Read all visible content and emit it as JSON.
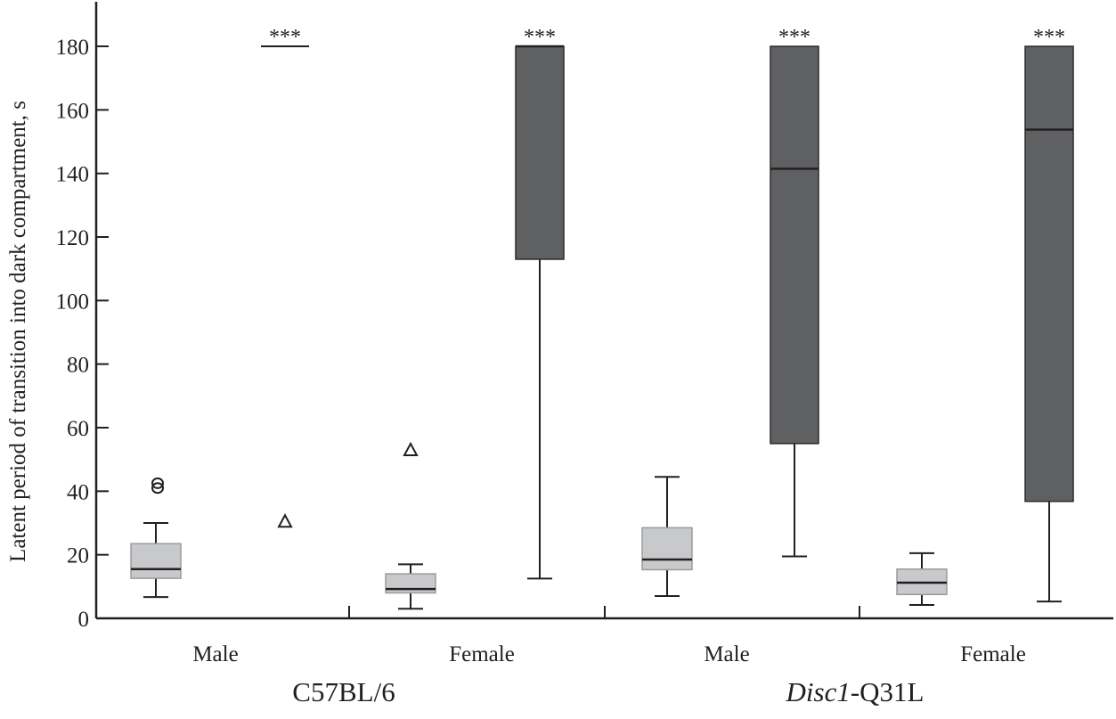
{
  "chart_data": {
    "type": "box",
    "title": "",
    "ylabel": "Latent period of transition into dark compartment, s",
    "ylim": [
      0,
      180
    ],
    "yticks": [
      0,
      20,
      40,
      60,
      80,
      100,
      120,
      140,
      160,
      180
    ],
    "grid": false,
    "sex_labels": [
      "Male",
      "Female",
      "Male",
      "Female"
    ],
    "strain_labels": [
      {
        "prefix": "C57BL/6",
        "italic": "",
        "suffix": ""
      },
      {
        "prefix": "",
        "italic": "Disc1",
        "suffix": "-Q31L"
      }
    ],
    "colors": {
      "light": "#c8c9cb",
      "dark": "#5f6062",
      "stroke": "#231f20"
    },
    "boxes": [
      {
        "strain": "C57BL/6",
        "sex": "Male",
        "shade": "light",
        "min": 6.7,
        "q1": 12.6,
        "median": 15.5,
        "q3": 23.5,
        "max": 30,
        "outliers": [
          41,
          42.5
        ],
        "outlier_marker": "circle",
        "annotation": ""
      },
      {
        "strain": "C57BL/6",
        "sex": "Male",
        "shade": "dark",
        "min": 180,
        "q1": 180,
        "median": 180,
        "q3": 180,
        "max": 180,
        "outliers": [
          30.5
        ],
        "outlier_marker": "triangle",
        "annotation": "***"
      },
      {
        "strain": "C57BL/6",
        "sex": "Female",
        "shade": "light",
        "min": 3,
        "q1": 8,
        "median": 9.2,
        "q3": 14,
        "max": 17,
        "outliers": [
          53
        ],
        "outlier_marker": "triangle",
        "annotation": ""
      },
      {
        "strain": "C57BL/6",
        "sex": "Female",
        "shade": "dark",
        "min": 12.5,
        "q1": 113,
        "median": 180,
        "q3": 180,
        "max": 180,
        "outliers": [],
        "outlier_marker": "",
        "annotation": "***"
      },
      {
        "strain": "Disc1-Q31L",
        "sex": "Male",
        "shade": "light",
        "min": 7,
        "q1": 15.3,
        "median": 18.5,
        "q3": 28.5,
        "max": 44.5,
        "outliers": [],
        "outlier_marker": "",
        "annotation": ""
      },
      {
        "strain": "Disc1-Q31L",
        "sex": "Male",
        "shade": "dark",
        "min": 19.5,
        "q1": 55,
        "median": 141.5,
        "q3": 180,
        "max": 180,
        "outliers": [],
        "outlier_marker": "",
        "annotation": "***"
      },
      {
        "strain": "Disc1-Q31L",
        "sex": "Female",
        "shade": "light",
        "min": 4.2,
        "q1": 7.5,
        "median": 11.2,
        "q3": 15.5,
        "max": 20.5,
        "outliers": [],
        "outlier_marker": "",
        "annotation": ""
      },
      {
        "strain": "Disc1-Q31L",
        "sex": "Female",
        "shade": "dark",
        "min": 5.3,
        "q1": 36.8,
        "median": 153.8,
        "q3": 180,
        "max": 180,
        "outliers": [],
        "outlier_marker": "",
        "annotation": "***"
      }
    ]
  }
}
